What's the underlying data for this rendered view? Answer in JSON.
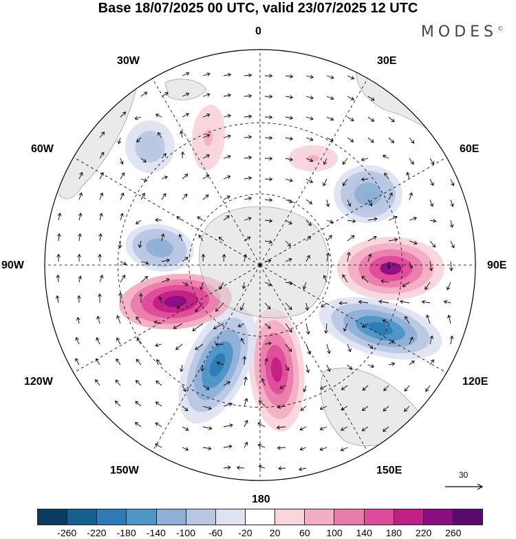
{
  "title": "Base 18/07/2025 00 UTC, valid 23/07/2025 12 UTC",
  "brand": "MODES",
  "brand_mark": "©",
  "longitude_labels": {
    "top": "0",
    "top_right": "30E",
    "right_upper": "60E",
    "right": "90E",
    "right_lower": "120E",
    "bottom_right": "150E",
    "bottom": "180",
    "bottom_left": "150W",
    "left_lower": "120W",
    "left": "90W",
    "left_upper": "60W",
    "top_left": "30W"
  },
  "map": {
    "projection": "south-polar-stereographic",
    "field": "anomaly",
    "land_color": "#d9d9d9",
    "anomalies": [
      {
        "value": 220,
        "color_scale": "positive"
      },
      {
        "value": -220,
        "color_scale": "negative"
      },
      {
        "value": 200,
        "color_scale": "positive"
      },
      {
        "value": -220,
        "color_scale": "negative"
      },
      {
        "value": 240,
        "color_scale": "positive"
      },
      {
        "value": -140,
        "color_scale": "negative"
      },
      {
        "value": -140,
        "color_scale": "negative"
      },
      {
        "value": -100,
        "color_scale": "negative"
      },
      {
        "value": 60,
        "color_scale": "positive"
      },
      {
        "value": 60,
        "color_scale": "positive"
      }
    ]
  },
  "colorbar": {
    "colors": [
      "#0b3b5e",
      "#16608f",
      "#2c7bb6",
      "#4c96c8",
      "#8fb0d6",
      "#b9c7e3",
      "#dfe3f1",
      "#ffffff",
      "#f9d5dc",
      "#f3aec3",
      "#ea7cac",
      "#de4b9a",
      "#c01f84",
      "#8b0e83",
      "#5b0a6e"
    ],
    "ticks": [
      "-260",
      "-220",
      "-180",
      "-140",
      "-100",
      "-60",
      "-20",
      "20",
      "60",
      "100",
      "140",
      "180",
      "220",
      "260"
    ]
  },
  "reference_vector": {
    "label": "30"
  }
}
